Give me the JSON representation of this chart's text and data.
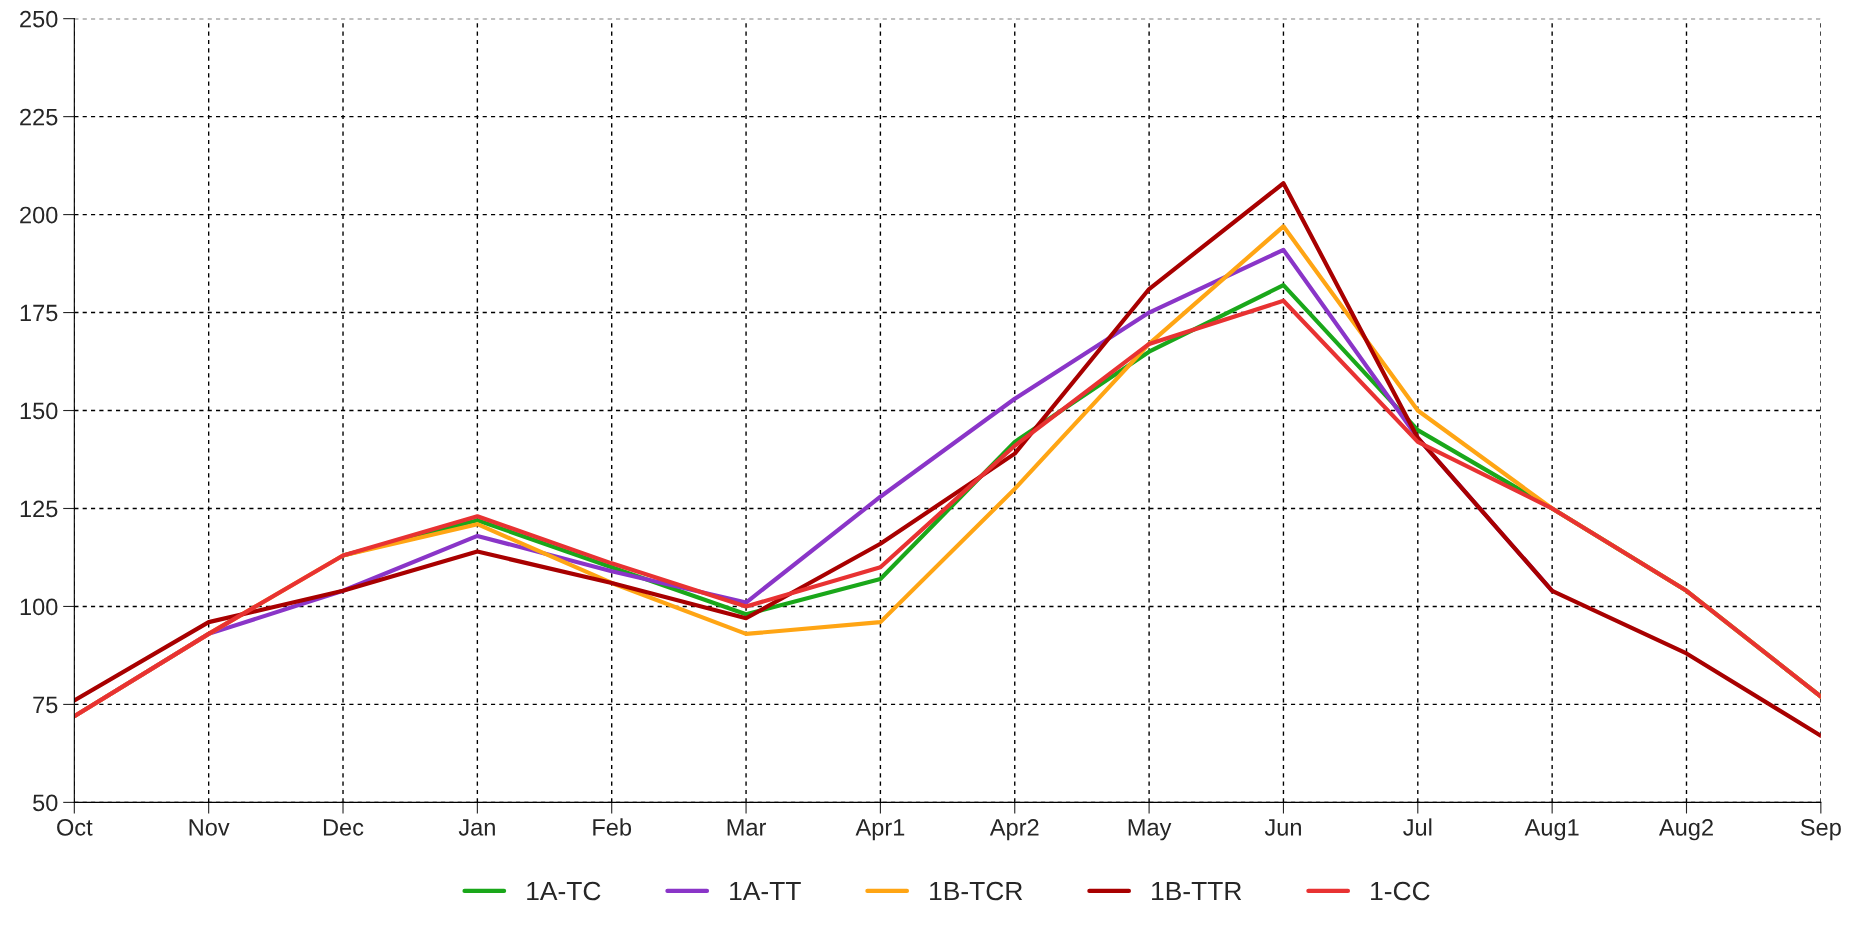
{
  "chart_data": {
    "type": "line",
    "categories": [
      "Oct",
      "Nov",
      "Dec",
      "Jan",
      "Feb",
      "Mar",
      "Apr1",
      "Apr2",
      "May",
      "Jun",
      "Jul",
      "Aug1",
      "Aug2",
      "Sep"
    ],
    "series": [
      {
        "name": "1A-TC",
        "color": "#1aa71a",
        "values": [
          null,
          null,
          113,
          122,
          110,
          98,
          107,
          142,
          165,
          182,
          145,
          125,
          104,
          77
        ]
      },
      {
        "name": "1A-TT",
        "color": "#8a35c8",
        "values": [
          72,
          93,
          104,
          118,
          109,
          101,
          128,
          153,
          175,
          191,
          143,
          104,
          null,
          null
        ]
      },
      {
        "name": "1B-TCR",
        "color": "#ffa514",
        "values": [
          72,
          93,
          113,
          121,
          106,
          93,
          96,
          130,
          167,
          197,
          150,
          125,
          104,
          77
        ]
      },
      {
        "name": "1B-TTR",
        "color": "#a80000",
        "values": [
          76,
          96,
          104,
          114,
          106,
          97,
          116,
          139,
          181,
          208,
          143,
          104,
          88,
          67
        ]
      },
      {
        "name": "1-CC",
        "color": "#e83232",
        "values": [
          72,
          93,
          113,
          123,
          111,
          100,
          110,
          141,
          167,
          178,
          142,
          125,
          104,
          77
        ]
      }
    ],
    "ylim": [
      50,
      250
    ],
    "yticks": [
      50,
      75,
      100,
      125,
      150,
      175,
      200,
      225,
      250
    ],
    "grid": true,
    "legend": "bottom",
    "line_style": "solid",
    "marker": "none"
  }
}
